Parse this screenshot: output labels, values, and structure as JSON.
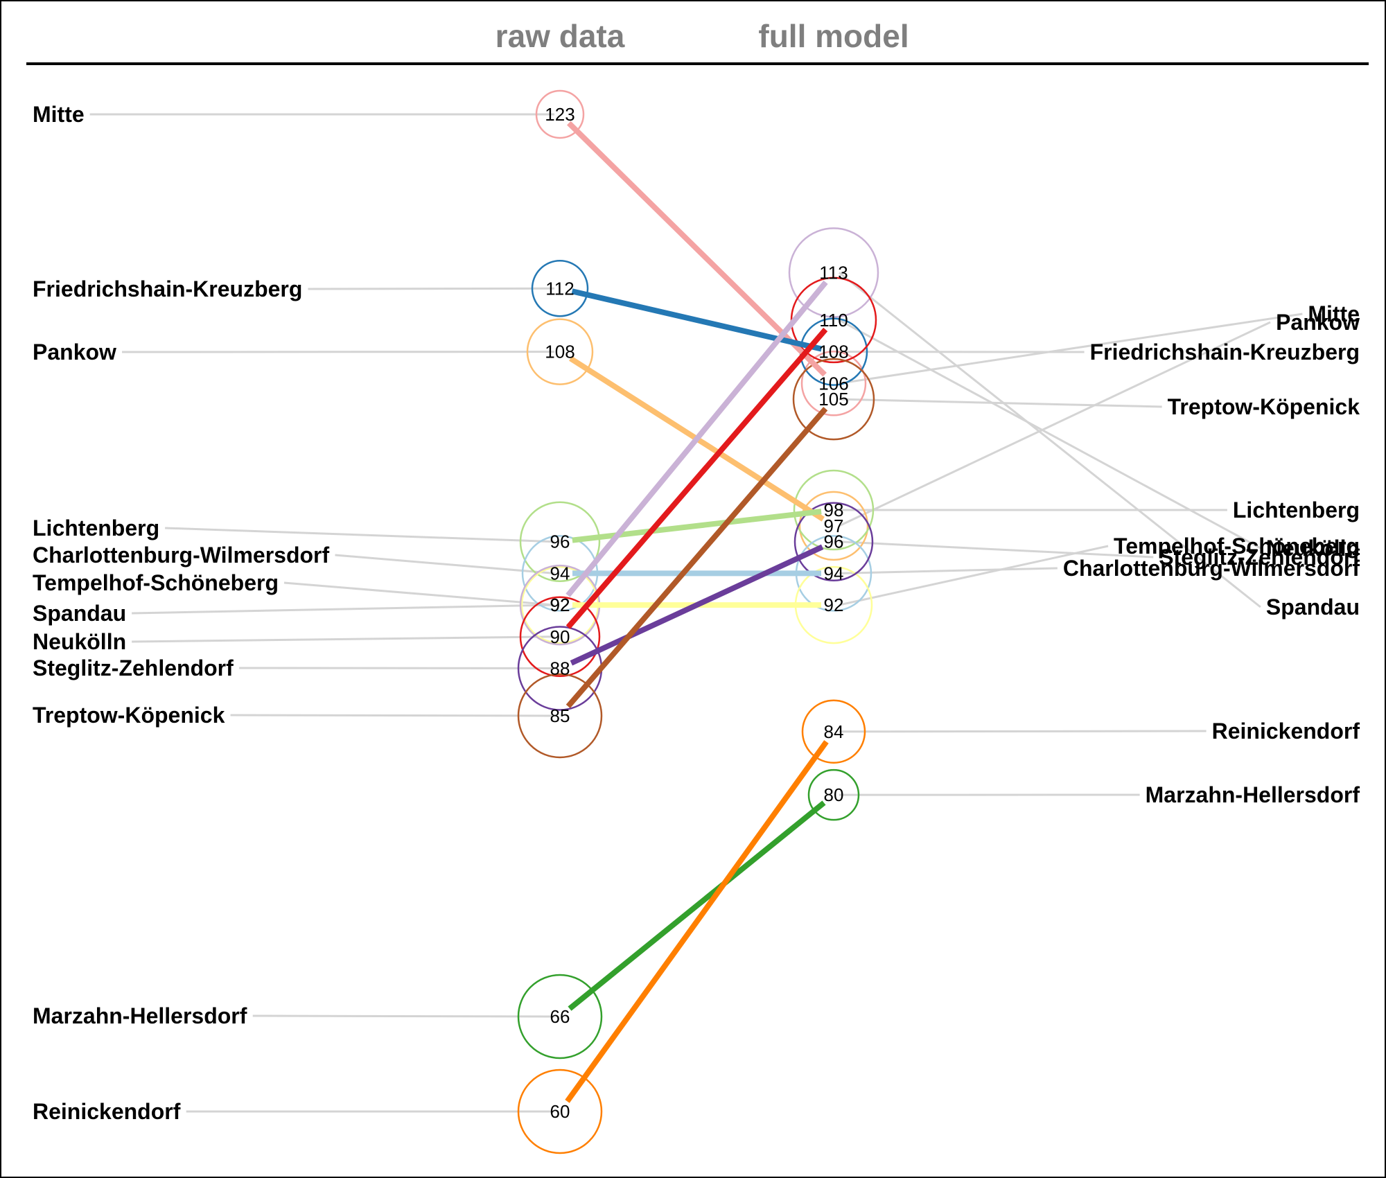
{
  "chart_data": {
    "type": "slope",
    "title": "",
    "columns": [
      "raw data",
      "full model"
    ],
    "series": [
      {
        "name": "Mitte",
        "color": "#F4A3A3",
        "values": [
          123,
          106
        ]
      },
      {
        "name": "Friedrichshain-Kreuzberg",
        "color": "#2478B4",
        "values": [
          112,
          108
        ]
      },
      {
        "name": "Pankow",
        "color": "#FDBF6F",
        "values": [
          108,
          97
        ]
      },
      {
        "name": "Lichtenberg",
        "color": "#B2DF8A",
        "values": [
          96,
          98
        ]
      },
      {
        "name": "Charlottenburg-Wilmersdorf",
        "color": "#A6CEE3",
        "values": [
          94,
          94
        ]
      },
      {
        "name": "Tempelhof-Schöneberg",
        "color": "#FFFF99",
        "values": [
          92,
          92
        ]
      },
      {
        "name": "Spandau",
        "color": "#CAB2D6",
        "values": [
          92,
          113
        ]
      },
      {
        "name": "Neukölln",
        "color": "#E31A1C",
        "values": [
          90,
          110
        ]
      },
      {
        "name": "Steglitz-Zehlendorf",
        "color": "#6A3D9A",
        "values": [
          88,
          96
        ]
      },
      {
        "name": "Treptow-Köpenick",
        "color": "#B15928",
        "values": [
          85,
          105
        ]
      },
      {
        "name": "Marzahn-Hellersdorf",
        "color": "#33A02C",
        "values": [
          66,
          80
        ]
      },
      {
        "name": "Reinickendorf",
        "color": "#FF7F00",
        "values": [
          60,
          84
        ]
      }
    ]
  }
}
